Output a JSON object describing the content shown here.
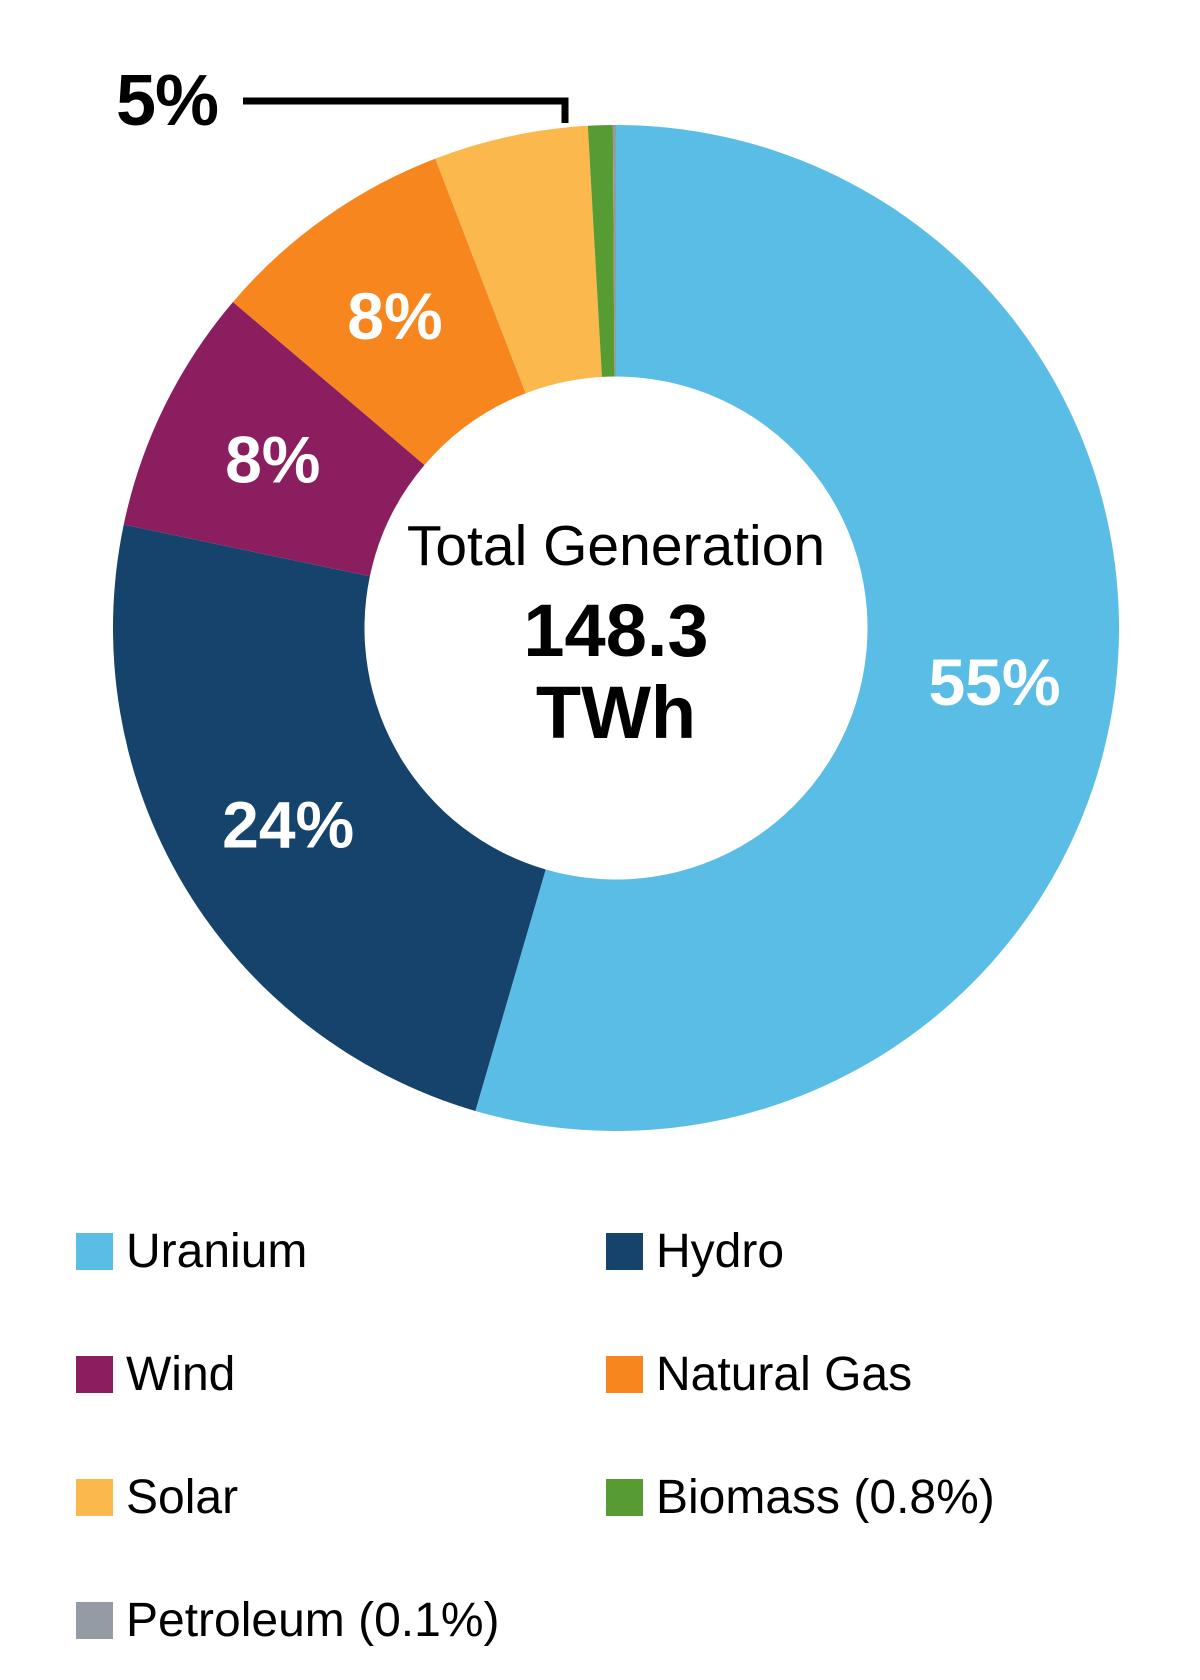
{
  "chart_data": {
    "type": "pie",
    "subtype": "donut",
    "center_label": {
      "line1": "Total Generation",
      "value": "148.3",
      "unit": "TWh"
    },
    "series": [
      {
        "name": "Uranium",
        "value": 55,
        "pct_label": "55%",
        "color": "#5ABDE6",
        "label_placement": "inside"
      },
      {
        "name": "Hydro",
        "value": 24,
        "pct_label": "24%",
        "color": "#15436B",
        "label_placement": "inside"
      },
      {
        "name": "Wind",
        "value": 8,
        "pct_label": "8%",
        "color": "#8B1E5F",
        "label_placement": "inside"
      },
      {
        "name": "Natural Gas",
        "value": 8,
        "pct_label": "8%",
        "color": "#F8861E",
        "label_placement": "inside"
      },
      {
        "name": "Solar",
        "value": 5,
        "pct_label": "5%",
        "color": "#FBB84D",
        "label_placement": "callout"
      },
      {
        "name": "Biomass",
        "value": 0.8,
        "pct_label": "0.8%",
        "color": "#579B33",
        "label_placement": "none"
      },
      {
        "name": "Petroleum",
        "value": 0.1,
        "pct_label": "0.1%",
        "color": "#959BA4",
        "label_placement": "none"
      }
    ],
    "legend": [
      {
        "label": "Uranium",
        "color": "#5ABDE6"
      },
      {
        "label": "Hydro",
        "color": "#15436B"
      },
      {
        "label": "Wind",
        "color": "#8B1E5F"
      },
      {
        "label": "Natural Gas",
        "color": "#F8861E"
      },
      {
        "label": "Solar",
        "color": "#FBB84D"
      },
      {
        "label": "Biomass (0.8%)",
        "color": "#579B33"
      },
      {
        "label": "Petroleum (0.1%)",
        "color": "#959BA4"
      }
    ],
    "layout": {
      "start_angle_deg": 0,
      "direction": "clockwise",
      "inner_ratio": 0.5,
      "grid": false,
      "legend_position": "bottom-two-columns"
    }
  }
}
